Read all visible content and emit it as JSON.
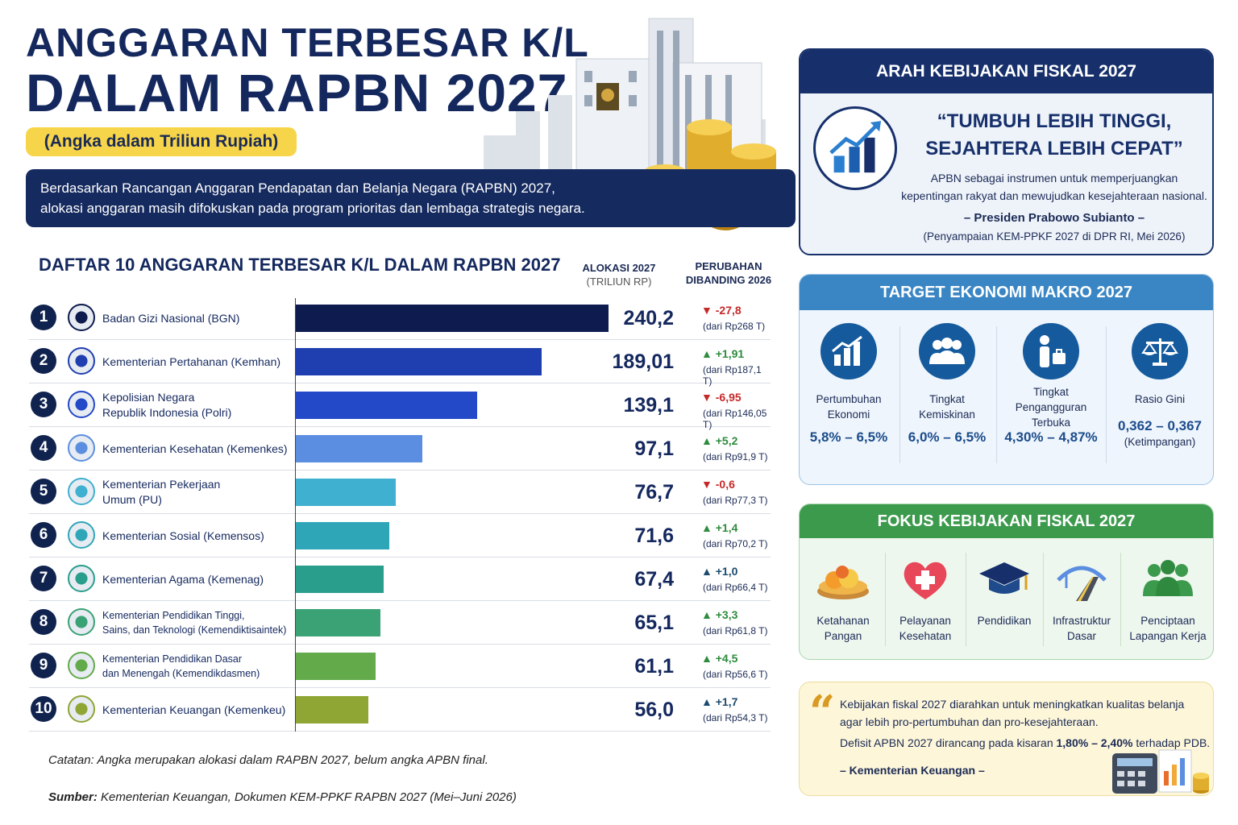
{
  "header": {
    "title_line1": "ANGGARAN TERBESAR K/L",
    "title_line2": "DALAM RAPBN 2027",
    "unit_badge": "(Angka dalam Triliun Rupiah)",
    "intro_line1": "Berdasarkan Rancangan Anggaran Pendapatan dan Belanja Negara (RAPBN) 2027,",
    "intro_line2": "alokasi anggaran masih difokuskan pada program prioritas dan lembaga strategis negara.",
    "illustration_currency": "Rp"
  },
  "table": {
    "title": "DAFTAR 10 ANGGARAN TERBESAR K/L DALAM RAPBN 2027",
    "col_alloc": "ALOKASI 2027",
    "col_alloc_unit": "(TRILIUN RP)",
    "col_change_1": "PERUBAHAN",
    "col_change_2": "DIBANDING 2026"
  },
  "chart_data": {
    "type": "bar",
    "orientation": "horizontal",
    "categories": [
      "Badan Gizi Nasional (BGN)",
      "Kementerian Pertahanan (Kemhan)",
      "Kepolisian Negara Republik Indonesia (Polri)",
      "Kementerian Kesehatan (Kemenkes)",
      "Kementerian Pekerjaan Umum (PU)",
      "Kementerian Sosial (Kemensos)",
      "Kementerian Agama (Kemenag)",
      "Kementerian Pendidikan Tinggi, Sains, dan Teknologi (Kemendiktisaintek)",
      "Kementerian Pendidikan Dasar dan Menengah (Kemendikdasmen)",
      "Kementerian Keuangan (Kemenkeu)"
    ],
    "values": [
      240.2,
      189.01,
      139.1,
      97.1,
      76.7,
      71.6,
      67.4,
      65.1,
      61.1,
      56.0
    ],
    "xlim": [
      0,
      240.2
    ],
    "rows": [
      {
        "rank": "1",
        "name": [
          "Badan Gizi Nasional (BGN)"
        ],
        "value_label": "240,2",
        "change": "▼ -27,8",
        "direction": "down",
        "prev": "(dari Rp268 T)",
        "color": "#0d1b4e"
      },
      {
        "rank": "2",
        "name": [
          "Kementerian Pertahanan (Kemhan)"
        ],
        "value_label": "189,01",
        "change": "▲ +1,91",
        "direction": "up",
        "prev": "(dari Rp187,1 T)",
        "color": "#1f3fb0"
      },
      {
        "rank": "3",
        "name": [
          "Kepolisian Negara",
          "Republik Indonesia (Polri)"
        ],
        "value_label": "139,1",
        "change": "▼ -6,95",
        "direction": "down",
        "prev": "(dari Rp146,05 T)",
        "color": "#2348c8"
      },
      {
        "rank": "4",
        "name": [
          "Kementerian Kesehatan (Kemenkes)"
        ],
        "value_label": "97,1",
        "change": "▲ +5,2",
        "direction": "up",
        "prev": "(dari Rp91,9 T)",
        "color": "#5b8ee0"
      },
      {
        "rank": "5",
        "name": [
          "Kementerian Pekerjaan",
          "Umum (PU)"
        ],
        "value_label": "76,7",
        "change": "▼ -0,6",
        "direction": "down",
        "prev": "(dari Rp77,3 T)",
        "color": "#3fb0cf"
      },
      {
        "rank": "6",
        "name": [
          "Kementerian Sosial (Kemensos)"
        ],
        "value_label": "71,6",
        "change": "▲ +1,4",
        "direction": "up",
        "prev": "(dari Rp70,2 T)",
        "color": "#2fa6b8"
      },
      {
        "rank": "7",
        "name": [
          "Kementerian Agama (Kemenag)"
        ],
        "value_label": "67,4",
        "change": "▲ +1,0",
        "direction": "upn",
        "prev": "(dari Rp66,4 T)",
        "color": "#2a9e8c"
      },
      {
        "rank": "8",
        "name": [
          "Kementerian Pendidikan Tinggi,",
          "Sains, dan Teknologi (Kemendiktisaintek)"
        ],
        "value_label": "65,1",
        "change": "▲ +3,3",
        "direction": "up",
        "prev": "(dari Rp61,8 T)",
        "color": "#3aa274"
      },
      {
        "rank": "9",
        "name": [
          "Kementerian Pendidikan Dasar",
          "dan Menengah (Kemendikdasmen)"
        ],
        "value_label": "61,1",
        "change": "▲ +4,5",
        "direction": "up",
        "prev": "(dari Rp56,6 T)",
        "color": "#62aa4a"
      },
      {
        "rank": "10",
        "name": [
          "Kementerian Keuangan (Kemenkeu)"
        ],
        "value_label": "56,0",
        "change": "▲ +1,7",
        "direction": "upn",
        "prev": "(dari Rp54,3 T)",
        "color": "#8fa534"
      }
    ]
  },
  "notes": {
    "catatan": "Catatan: Angka merupakan alokasi dalam RAPBN 2027, belum angka APBN final.",
    "sumber_label": "Sumber:",
    "sumber_text": " Kementerian Keuangan, Dokumen KEM-PPKF RAPBN 2027 (Mei–Juni 2026)"
  },
  "policy_direction": {
    "title": "ARAH KEBIJAKAN FISKAL 2027",
    "quote_line1": "“TUMBUH LEBIH TINGGI,",
    "quote_line2": "SEJAHTERA LEBIH CEPAT”",
    "desc_line1": "APBN sebagai instrumen untuk memperjuangkan",
    "desc_line2": "kepentingan rakyat dan mewujudkan kesejahteraan nasional.",
    "by": "– Presiden Prabowo Subianto –",
    "source": "(Penyampaian KEM-PPKF 2027 di DPR RI, Mei 2026)"
  },
  "macro_targets": {
    "title": "TARGET EKONOMI MAKRO 2027",
    "items": [
      {
        "label": [
          "Pertumbuhan",
          "Ekonomi"
        ],
        "value": "5,8% – 6,5%",
        "sub": "",
        "icon": "growth-chart-icon"
      },
      {
        "label": [
          "Tingkat",
          "Kemiskinan"
        ],
        "value": "6,0% – 6,5%",
        "sub": "",
        "icon": "people-group-icon"
      },
      {
        "label": [
          "Tingkat",
          "Pengangguran Terbuka"
        ],
        "value": "4,30% – 4,87%",
        "sub": "",
        "icon": "jobseeker-icon"
      },
      {
        "label": [
          "Rasio Gini",
          ""
        ],
        "value": "0,362 – 0,367",
        "sub": "(Ketimpangan)",
        "icon": "scales-icon"
      }
    ]
  },
  "fiscal_focus": {
    "title": "FOKUS KEBIJAKAN FISKAL 2027",
    "items": [
      {
        "label": [
          "Ketahanan",
          "Pangan"
        ],
        "icon": "food-bowl-icon"
      },
      {
        "label": [
          "Pelayanan",
          "Kesehatan"
        ],
        "icon": "health-heart-icon"
      },
      {
        "label": [
          "Pendidikan",
          ""
        ],
        "icon": "graduation-cap-icon"
      },
      {
        "label": [
          "Infrastruktur",
          "Dasar"
        ],
        "icon": "road-bridge-icon"
      },
      {
        "label": [
          "Penciptaan",
          "Lapangan Kerja"
        ],
        "icon": "workers-icon"
      }
    ]
  },
  "ministry_note": {
    "line1": "Kebijakan fiskal 2027 diarahkan untuk meningkatkan kualitas belanja",
    "line2": "agar lebih pro-pertumbuhan dan pro-kesejahteraan.",
    "line3_pre": "Defisit APBN 2027 dirancang pada kisaran ",
    "line3_bold": "1,80% – 2,40%",
    "line3_post": " terhadap PDB.",
    "by": "– Kementerian Keuangan –"
  }
}
